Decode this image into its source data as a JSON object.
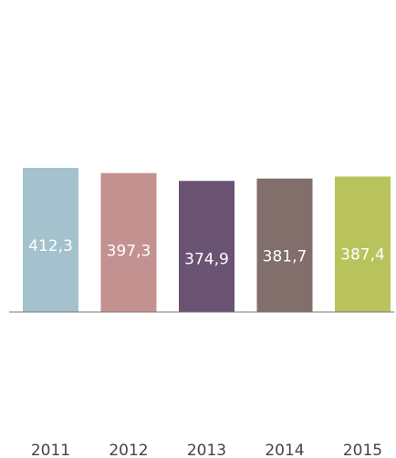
{
  "chart_data": {
    "type": "bar",
    "categories": [
      "2011",
      "2012",
      "2013",
      "2014",
      "2015"
    ],
    "values": [
      412.3,
      397.3,
      374.9,
      381.7,
      387.4
    ],
    "value_labels": [
      "412,3",
      "397,3",
      "374,9",
      "381,7",
      "387,4"
    ],
    "colors": [
      "#a3c2cd",
      "#c49191",
      "#6a5373",
      "#826f6b",
      "#b9c35c"
    ],
    "title": "",
    "xlabel": "",
    "ylabel": "",
    "ylim": [
      0,
      412.3
    ],
    "grid": false,
    "legend": "none",
    "axis_color": "#777777"
  }
}
